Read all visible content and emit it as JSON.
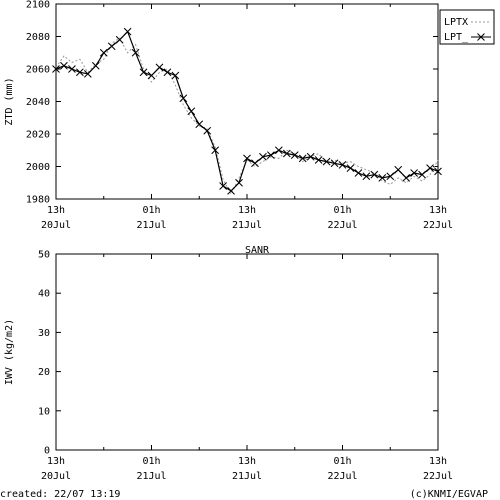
{
  "chart_data": [
    {
      "type": "line",
      "ylabel": "ZTD (mm)",
      "ylim": [
        1980,
        2100
      ],
      "yticks": [
        "1980",
        "2000",
        "2020",
        "2040",
        "2060",
        "2080",
        "2100"
      ],
      "xlim": [
        0,
        48
      ],
      "xtick_hours": [
        0,
        12,
        24,
        36,
        48
      ],
      "xtick_labels": [
        [
          "13h",
          "20Jul"
        ],
        [
          "01h",
          "21Jul"
        ],
        [
          "13h",
          "21Jul"
        ],
        [
          "01h",
          "22Jul"
        ],
        [
          "13h",
          "22Jul"
        ]
      ],
      "legend_position": "top-right",
      "series": [
        {
          "name": "LPTX",
          "style": "dotted",
          "color": "#9a9a9a",
          "x": [
            0,
            1,
            2,
            3,
            4,
            5,
            6,
            7,
            8,
            9,
            10,
            11,
            12,
            13,
            14,
            15,
            16,
            17,
            18,
            19,
            20,
            21,
            22,
            23,
            24,
            25,
            26,
            27,
            28,
            29,
            30,
            31,
            32,
            33,
            34,
            35,
            36,
            37,
            38,
            39,
            40,
            41,
            42,
            43,
            44,
            45,
            46,
            47,
            48
          ],
          "y": [
            2061,
            2068,
            2064,
            2066,
            2058,
            2063,
            2066,
            2076,
            2079,
            2070,
            2075,
            2060,
            2052,
            2058,
            2060,
            2050,
            2038,
            2030,
            2025,
            2023,
            2012,
            1992,
            1983,
            1993,
            2004,
            2000,
            2003,
            2006,
            2005,
            2010,
            2008,
            2003,
            2006,
            2008,
            2002,
            2004,
            2002,
            2003,
            2000,
            1998,
            1996,
            1991,
            1989,
            1993,
            1990,
            1994,
            1991,
            1995,
            2004
          ]
        },
        {
          "name": "LPT_",
          "style": "solid-x",
          "color": "#000000",
          "x": [
            0,
            1,
            2,
            3,
            4,
            5,
            6,
            7,
            8,
            9,
            10,
            11,
            12,
            13,
            14,
            15,
            16,
            17,
            18,
            19,
            20,
            21,
            22,
            23,
            24,
            25,
            26,
            27,
            28,
            29,
            30,
            31,
            32,
            33,
            34,
            35,
            36,
            37,
            38,
            39,
            40,
            41,
            42,
            43,
            44,
            45,
            46,
            47,
            48
          ],
          "y": [
            2060,
            2062,
            2060,
            2058,
            2057,
            2062,
            2070,
            2074,
            2078,
            2083,
            2070,
            2058,
            2056,
            2061,
            2058,
            2056,
            2042,
            2034,
            2026,
            2022,
            2010,
            1988,
            1985,
            1990,
            2005,
            2002,
            2006,
            2007,
            2010,
            2008,
            2007,
            2005,
            2006,
            2004,
            2003,
            2002,
            2001,
            1999,
            1996,
            1994,
            1995,
            1993,
            1994,
            1998,
            1993,
            1996,
            1995,
            1999,
            1997
          ]
        }
      ]
    },
    {
      "type": "line",
      "title": "SANR",
      "ylabel": "IWV (kg/m2)",
      "ylim": [
        0,
        50
      ],
      "yticks": [
        "0",
        "10",
        "20",
        "30",
        "40",
        "50"
      ],
      "xlim": [
        0,
        48
      ],
      "xtick_hours": [
        0,
        12,
        24,
        36,
        48
      ],
      "xtick_labels": [
        [
          "13h",
          "20Jul"
        ],
        [
          "01h",
          "21Jul"
        ],
        [
          "13h",
          "21Jul"
        ],
        [
          "01h",
          "22Jul"
        ],
        [
          "13h",
          "22Jul"
        ]
      ],
      "series": []
    }
  ],
  "footer": {
    "created": "created: 22/07 13:19",
    "credit": "(c)KNMI/EGVAP"
  }
}
